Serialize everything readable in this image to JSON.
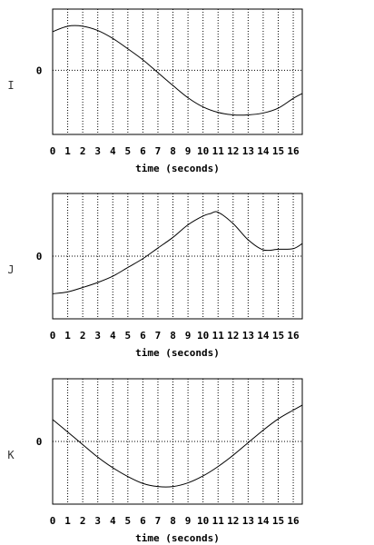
{
  "chart_data": [
    {
      "type": "line",
      "panel_label": "I",
      "y_tick_label": "0",
      "xlabel": "time (seconds)",
      "x_ticks": [
        "0",
        "1",
        "2",
        "3",
        "4",
        "5",
        "6",
        "7",
        "8",
        "9",
        "10",
        "11",
        "12",
        "13",
        "14",
        "15",
        "16"
      ],
      "xlim": [
        0,
        16.6
      ],
      "ylim": [
        -1.05,
        1.0
      ],
      "grid": true,
      "series": [
        {
          "x": [
            0,
            1,
            2,
            3,
            4,
            5,
            6,
            7,
            8,
            9,
            10,
            11,
            12,
            13,
            14,
            15,
            16,
            16.6
          ],
          "y": [
            0.63,
            0.72,
            0.72,
            0.65,
            0.52,
            0.35,
            0.17,
            -0.04,
            -0.25,
            -0.45,
            -0.6,
            -0.69,
            -0.73,
            -0.73,
            -0.7,
            -0.62,
            -0.46,
            -0.38
          ]
        }
      ]
    },
    {
      "type": "line",
      "panel_label": "J",
      "y_tick_label": "0",
      "xlabel": "time (seconds)",
      "x_ticks": [
        "0",
        "1",
        "2",
        "3",
        "4",
        "5",
        "6",
        "7",
        "8",
        "9",
        "10",
        "11",
        "12",
        "13",
        "14",
        "15",
        "16"
      ],
      "xlim": [
        0,
        16.6
      ],
      "ylim": [
        -1.0,
        1.0
      ],
      "grid": true,
      "series": [
        {
          "x": [
            0,
            1,
            2,
            3,
            4,
            5,
            6,
            7,
            8,
            9,
            10,
            10.5,
            11,
            12,
            13,
            14,
            15,
            16,
            16.6
          ],
          "y": [
            -0.6,
            -0.57,
            -0.5,
            -0.42,
            -0.32,
            -0.18,
            -0.04,
            0.13,
            0.3,
            0.5,
            0.64,
            0.68,
            0.7,
            0.52,
            0.26,
            0.1,
            0.11,
            0.12,
            0.2
          ]
        }
      ]
    },
    {
      "type": "line",
      "panel_label": "K",
      "y_tick_label": "0",
      "xlabel": "time (seconds)",
      "x_ticks": [
        "0",
        "1",
        "2",
        "3",
        "4",
        "5",
        "6",
        "7",
        "8",
        "9",
        "10",
        "11",
        "12",
        "13",
        "14",
        "15",
        "16"
      ],
      "xlim": [
        0,
        16.6
      ],
      "ylim": [
        -1.0,
        1.0
      ],
      "grid": true,
      "series": [
        {
          "x": [
            0,
            1,
            2,
            3,
            4,
            5,
            6,
            7,
            8,
            9,
            10,
            11,
            12,
            13,
            14,
            15,
            16,
            16.6
          ],
          "y": [
            0.35,
            0.15,
            -0.05,
            -0.25,
            -0.42,
            -0.56,
            -0.67,
            -0.72,
            -0.72,
            -0.66,
            -0.55,
            -0.4,
            -0.22,
            -0.02,
            0.18,
            0.36,
            0.5,
            0.58
          ]
        }
      ]
    }
  ]
}
